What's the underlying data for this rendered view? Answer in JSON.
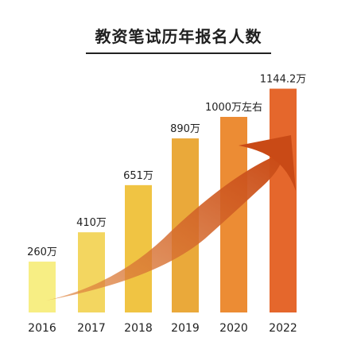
{
  "chart_data": {
    "type": "bar",
    "title": "教资笔试历年报名人数",
    "categories": [
      "2016",
      "2017",
      "2018",
      "2019",
      "2020",
      "2022"
    ],
    "values": [
      260,
      410,
      651,
      890,
      1000,
      1144.2
    ],
    "data_labels": [
      "260万",
      "410万",
      "651万",
      "890万",
      "1000万左右",
      "1144.2万"
    ],
    "colors": [
      "#F7EE84",
      "#F3D660",
      "#F0C443",
      "#EAA93A",
      "#EC8C34",
      "#E5672C"
    ],
    "trend_arrow_color": "#D2561F",
    "ylim": [
      0,
      1250
    ],
    "grid": false,
    "legend": "none"
  }
}
